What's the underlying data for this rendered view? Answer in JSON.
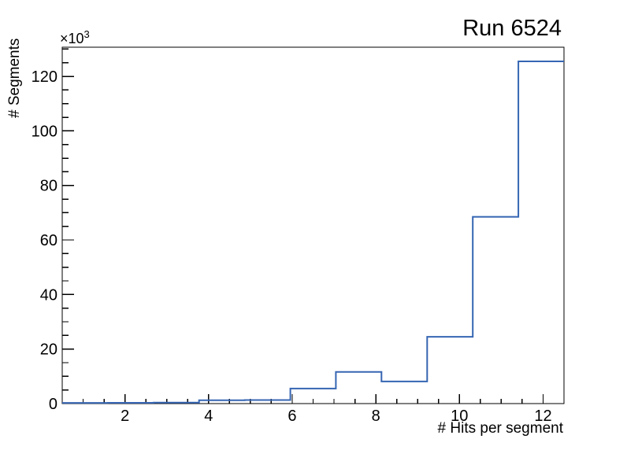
{
  "window": {
    "background": "#ffffff"
  },
  "title": "Run 6524",
  "y_axis_multiplier": {
    "base": "×10",
    "exponent": "3"
  },
  "chart_data": {
    "type": "bar",
    "subtype": "step-histogram",
    "title": "Run 6524",
    "xlabel": "# Hits per segment",
    "ylabel": "# Segments",
    "y_scale_label": "×10³",
    "bin_edges": [
      0.5,
      1.591,
      2.682,
      3.773,
      4.864,
      5.955,
      7.045,
      8.136,
      9.227,
      10.318,
      11.409,
      12.5
    ],
    "values": [
      250,
      300,
      350,
      1200,
      1300,
      5500,
      11600,
      8100,
      24500,
      68500,
      125500
    ],
    "values_axis_units_thousands": [
      0.25,
      0.3,
      0.35,
      1.2,
      1.3,
      5.5,
      11.6,
      8.1,
      24.5,
      68.5,
      125.5
    ],
    "xlim": [
      0.5,
      12.5
    ],
    "ylim": [
      0,
      130700
    ],
    "x_major_ticks": [
      2,
      4,
      6,
      8,
      10,
      12
    ],
    "x_major_tick_labels": [
      "2",
      "4",
      "6",
      "8",
      "10",
      "12"
    ],
    "x_minor_tick_step": 0.5,
    "y_major_ticks": [
      0,
      20000,
      40000,
      60000,
      80000,
      100000,
      120000
    ],
    "y_major_tick_labels": [
      "0",
      "20",
      "40",
      "60",
      "80",
      "100",
      "120"
    ],
    "y_minor_tick_step": 5000,
    "grid": false,
    "legend": false,
    "line_color": "#3565b2",
    "line_width": 2,
    "frame_color": "#000000",
    "text_color": "#000000"
  }
}
